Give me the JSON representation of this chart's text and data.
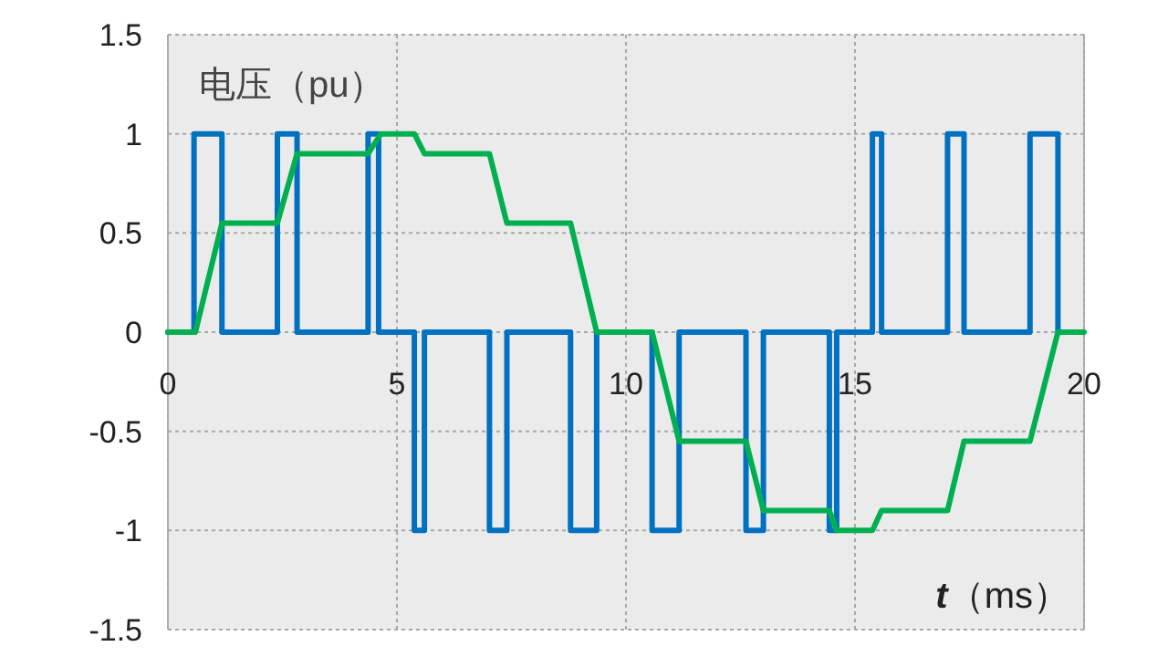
{
  "chart_data": {
    "type": "line",
    "xlabel": "t（ms）",
    "ylabel": "电压（pu）",
    "xlim": [
      0,
      20
    ],
    "xticks": [
      0,
      5,
      10,
      15,
      20
    ],
    "ylim": [
      -1.5,
      1.5
    ],
    "yticks": [
      -1.5,
      -1,
      -0.5,
      0,
      0.5,
      1,
      1.5
    ],
    "grid": true,
    "line_style": "solid",
    "series": [
      {
        "color": "#0070c0",
        "x": [
          0,
          0.57,
          0.57,
          1.18,
          1.18,
          2.39,
          2.39,
          2.82,
          2.82,
          4.37,
          4.37,
          4.6,
          4.6,
          5.38,
          5.38,
          5.6,
          5.6,
          7.02,
          7.02,
          7.4,
          7.4,
          8.79,
          8.79,
          9.36,
          9.36,
          10.57,
          10.57,
          11.16,
          11.16,
          12.62,
          12.62,
          13.0,
          13.0,
          14.44,
          14.44,
          14.6,
          14.6,
          15.38,
          15.38,
          15.58,
          15.58,
          17.02,
          17.02,
          17.38,
          17.38,
          18.82,
          18.82,
          19.43,
          19.43
        ],
        "values": [
          0,
          0,
          1,
          1,
          0,
          0,
          1,
          1,
          0,
          0,
          1,
          1,
          0,
          0,
          -1,
          -1,
          0,
          0,
          -1,
          -1,
          0,
          0,
          -1,
          -1,
          0,
          0,
          -1,
          -1,
          0,
          0,
          -1,
          -1,
          0,
          0,
          -1,
          -1,
          0,
          0,
          1,
          1,
          0,
          0,
          1,
          1,
          0,
          0,
          1,
          1,
          0
        ]
      },
      {
        "color": "#00b050",
        "x": [
          0,
          0.6,
          1.18,
          2.39,
          2.82,
          4.37,
          4.65,
          5.38,
          5.6,
          7.02,
          7.4,
          8.79,
          9.36,
          10.57,
          11.16,
          12.62,
          13.0,
          14.44,
          14.6,
          15.38,
          15.58,
          17.02,
          17.38,
          18.82,
          19.43,
          20
        ],
        "values": [
          0,
          0,
          0.55,
          0.55,
          0.9,
          0.9,
          1,
          1,
          0.9,
          0.9,
          0.55,
          0.55,
          0,
          0,
          -0.55,
          -0.55,
          -0.9,
          -0.9,
          -1,
          -1,
          -0.9,
          -0.9,
          -0.55,
          -0.55,
          0,
          0
        ]
      }
    ]
  }
}
